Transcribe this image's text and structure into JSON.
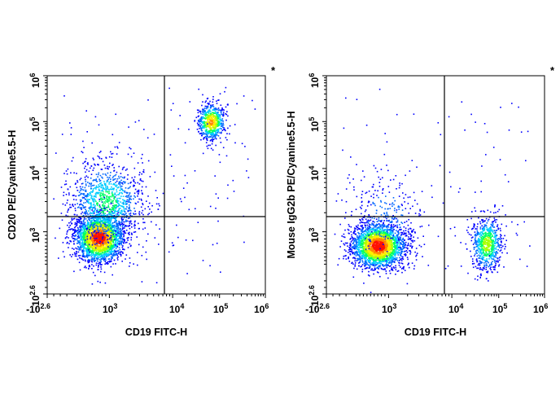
{
  "chart_data": [
    {
      "type": "scatter",
      "subtype": "flow-cytometry-density-dot-plot",
      "xlabel": "CD19 FITC-H",
      "ylabel": "CD20 PE/Cyanine5.5-H",
      "corner_mark": "*",
      "x_scale": "biexponential",
      "y_scale": "biexponential",
      "xlim": [
        "-10^2.6",
        "10^6"
      ],
      "ylim": [
        "-10^2.6",
        "10^6"
      ],
      "x_ticks": [
        {
          "base": "-10",
          "exp": "2.6"
        },
        {
          "base": "10",
          "exp": "3"
        },
        {
          "base": "10",
          "exp": "4"
        },
        {
          "base": "10",
          "exp": "5"
        },
        {
          "base": "10",
          "exp": "6"
        }
      ],
      "y_ticks": [
        {
          "base": "-10",
          "exp": "2.6"
        },
        {
          "base": "10",
          "exp": "3"
        },
        {
          "base": "10",
          "exp": "4"
        },
        {
          "base": "10",
          "exp": "5"
        },
        {
          "base": "10",
          "exp": "6"
        }
      ],
      "quadrant_gate": {
        "x": "~8000",
        "y": "~1500"
      },
      "populations": [
        {
          "name": "CD19- CD20- events",
          "center": {
            "x": 700,
            "y": 850
          },
          "density": "very high (red core)"
        },
        {
          "name": "CD19- low-CD20 spread",
          "center": {
            "x": 900,
            "y": 3000
          },
          "density": "medium"
        },
        {
          "name": "CD19+ CD20+ events",
          "center": {
            "x": 65000,
            "y": 100000
          },
          "density": "high"
        }
      ]
    },
    {
      "type": "scatter",
      "subtype": "flow-cytometry-density-dot-plot",
      "xlabel": "CD19 FITC-H",
      "ylabel": "Mouse IgG2b PE/Cyanine5.5-H",
      "corner_mark": "*",
      "x_scale": "biexponential",
      "y_scale": "biexponential",
      "xlim": [
        "-10^2.6",
        "10^6"
      ],
      "ylim": [
        "-10^2.6",
        "10^6"
      ],
      "x_ticks": [
        {
          "base": "-10",
          "exp": "2.6"
        },
        {
          "base": "10",
          "exp": "3"
        },
        {
          "base": "10",
          "exp": "4"
        },
        {
          "base": "10",
          "exp": "5"
        },
        {
          "base": "10",
          "exp": "6"
        }
      ],
      "y_ticks": [
        {
          "base": "-10",
          "exp": "2.6"
        },
        {
          "base": "10",
          "exp": "3"
        },
        {
          "base": "10",
          "exp": "4"
        },
        {
          "base": "10",
          "exp": "5"
        },
        {
          "base": "10",
          "exp": "6"
        }
      ],
      "quadrant_gate": {
        "x": "~8000",
        "y": "~1500"
      },
      "populations": [
        {
          "name": "CD19- isotype-negative events",
          "center": {
            "x": 700,
            "y": 620
          },
          "density": "very high (red core)"
        },
        {
          "name": "CD19+ isotype-negative events",
          "center": {
            "x": 55000,
            "y": 680
          },
          "density": "medium"
        }
      ]
    }
  ],
  "colors": {
    "density_scale": [
      "#0000ff",
      "#0066ff",
      "#00ccff",
      "#00ff66",
      "#aaff00",
      "#ffee00",
      "#ff8800",
      "#ff1100"
    ],
    "axes": "#000000",
    "gate_lines": "#000000"
  }
}
